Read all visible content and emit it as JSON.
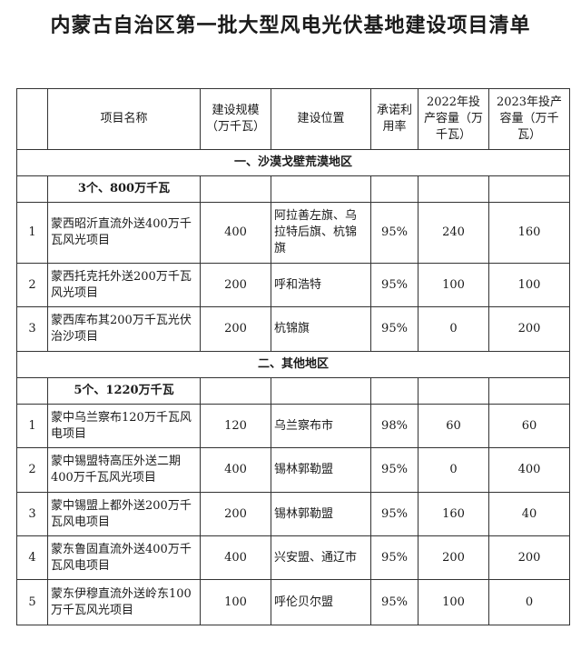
{
  "title": "内蒙古自治区第一批大型风电光伏基地建设项目清单",
  "headers": [
    "",
    "项目名称",
    "建设规模（万千瓦）",
    "建设位置",
    "承诺利用率",
    "2022年投产容量（万千瓦）",
    "2023年投产容量（万千瓦）"
  ],
  "sections": [
    {
      "title": "一、沙漠戈壁荒漠地区",
      "subtotal": "3个、800万千瓦",
      "rows": [
        {
          "no": "1",
          "name": "蒙西昭沂直流外送400万千瓦风光项目",
          "scale": "400",
          "location": "阿拉善左旗、乌拉特后旗、杭锦旗",
          "rate": "95%",
          "y2022": "240",
          "y2023": "160"
        },
        {
          "no": "2",
          "name": "蒙西托克托外送200万千瓦风光项目",
          "scale": "200",
          "location": "呼和浩特",
          "rate": "95%",
          "y2022": "100",
          "y2023": "100"
        },
        {
          "no": "3",
          "name": "蒙西库布其200万千瓦光伏治沙项目",
          "scale": "200",
          "location": "杭锦旗",
          "rate": "95%",
          "y2022": "0",
          "y2023": "200"
        }
      ]
    },
    {
      "title": "二、其他地区",
      "subtotal": "5个、1220万千瓦",
      "rows": [
        {
          "no": "1",
          "name": "蒙中乌兰察布120万千瓦风电项目",
          "scale": "120",
          "location": "乌兰察布市",
          "rate": "98%",
          "y2022": "60",
          "y2023": "60"
        },
        {
          "no": "2",
          "name": "蒙中锡盟特高压外送二期400万千瓦风光项目",
          "scale": "400",
          "location": "锡林郭勒盟",
          "rate": "95%",
          "y2022": "0",
          "y2023": "400"
        },
        {
          "no": "3",
          "name": "蒙中锡盟上都外送200万千瓦风电项目",
          "scale": "200",
          "location": "锡林郭勒盟",
          "rate": "95%",
          "y2022": "160",
          "y2023": "40"
        },
        {
          "no": "4",
          "name": "蒙东鲁固直流外送400万千瓦风电项目",
          "scale": "400",
          "location": "兴安盟、通辽市",
          "rate": "95%",
          "y2022": "200",
          "y2023": "200"
        },
        {
          "no": "5",
          "name": "蒙东伊穆直流外送岭东100万千瓦风光项目",
          "scale": "100",
          "location": "呼伦贝尔盟",
          "rate": "95%",
          "y2022": "100",
          "y2023": "0"
        }
      ]
    }
  ]
}
